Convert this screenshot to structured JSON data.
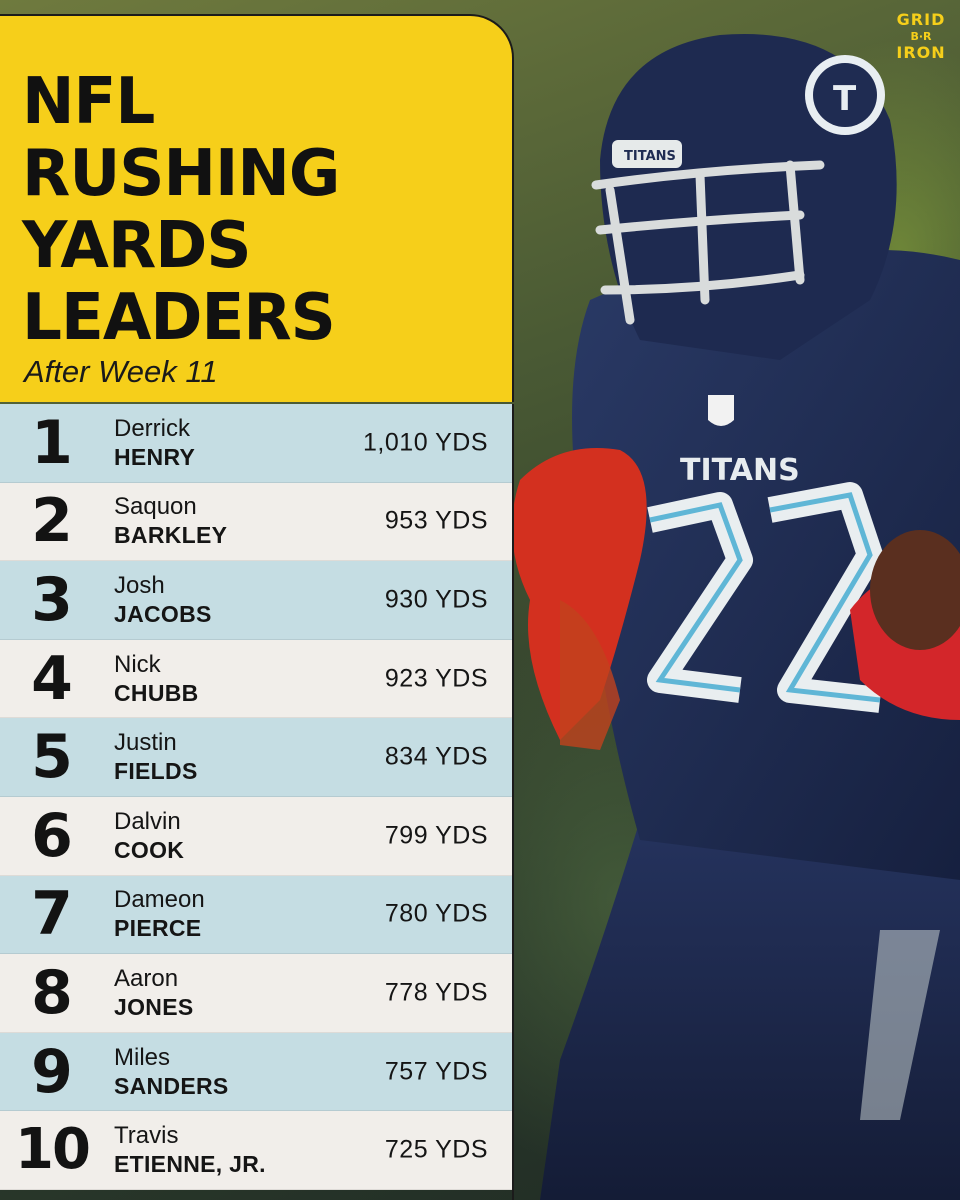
{
  "header": {
    "title_lines": [
      "NFL",
      "RUSHING",
      "YARDS",
      "LEADERS"
    ],
    "subtitle": "After Week 11"
  },
  "logo": {
    "line1": "GRID",
    "line2": "B·R",
    "line3": "IRON"
  },
  "photo": {
    "jersey_text": "TITANS",
    "jersey_number": "22",
    "helmet_text": "TITANS"
  },
  "leaders": [
    {
      "rank": "1",
      "first": "Derrick",
      "last": "HENRY",
      "yards": "1,010 YDS"
    },
    {
      "rank": "2",
      "first": "Saquon",
      "last": "BARKLEY",
      "yards": "953 YDS"
    },
    {
      "rank": "3",
      "first": "Josh",
      "last": "JACOBS",
      "yards": "930 YDS"
    },
    {
      "rank": "4",
      "first": "Nick",
      "last": "CHUBB",
      "yards": "923 YDS"
    },
    {
      "rank": "5",
      "first": "Justin",
      "last": "FIELDS",
      "yards": "834 YDS"
    },
    {
      "rank": "6",
      "first": "Dalvin",
      "last": "COOK",
      "yards": "799 YDS"
    },
    {
      "rank": "7",
      "first": "Dameon",
      "last": "PIERCE",
      "yards": "780 YDS"
    },
    {
      "rank": "8",
      "first": "Aaron",
      "last": "JONES",
      "yards": "778 YDS"
    },
    {
      "rank": "9",
      "first": "Miles",
      "last": "SANDERS",
      "yards": "757 YDS"
    },
    {
      "rank": "10",
      "first": "Travis",
      "last": "ETIENNE, JR.",
      "yards": "725 YDS"
    }
  ],
  "colors": {
    "accent_yellow": "#f6cf1a",
    "row_blue": "#c5dde3",
    "row_white": "#f1eeea",
    "titans_navy": "#1f2c52"
  }
}
